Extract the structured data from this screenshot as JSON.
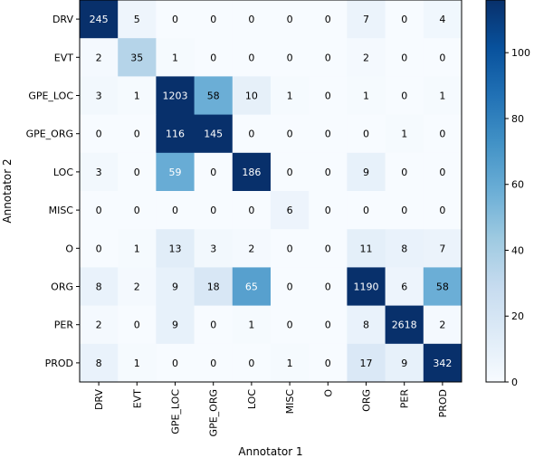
{
  "chart_data": {
    "type": "heatmap",
    "xlabel": "Annotator 1",
    "ylabel": "Annotator 2",
    "x_categories": [
      "DRV",
      "EVT",
      "GPE_LOC",
      "GPE_ORG",
      "LOC",
      "MISC",
      "O",
      "ORG",
      "PER",
      "PROD"
    ],
    "y_categories": [
      "DRV",
      "EVT",
      "GPE_LOC",
      "GPE_ORG",
      "LOC",
      "MISC",
      "O",
      "ORG",
      "PER",
      "PROD"
    ],
    "values": [
      [
        245,
        5,
        0,
        0,
        0,
        0,
        0,
        7,
        0,
        4
      ],
      [
        2,
        35,
        1,
        0,
        0,
        0,
        0,
        2,
        0,
        0
      ],
      [
        3,
        1,
        1203,
        58,
        10,
        1,
        0,
        1,
        0,
        1
      ],
      [
        0,
        0,
        116,
        145,
        0,
        0,
        0,
        0,
        1,
        0
      ],
      [
        3,
        0,
        59,
        0,
        186,
        0,
        0,
        9,
        0,
        0
      ],
      [
        0,
        0,
        0,
        0,
        0,
        6,
        0,
        0,
        0,
        0
      ],
      [
        0,
        1,
        13,
        3,
        2,
        0,
        0,
        11,
        8,
        7
      ],
      [
        8,
        2,
        9,
        18,
        65,
        0,
        0,
        1190,
        6,
        58
      ],
      [
        2,
        0,
        9,
        0,
        1,
        0,
        0,
        8,
        2618,
        2
      ],
      [
        8,
        1,
        0,
        0,
        0,
        1,
        0,
        17,
        9,
        342
      ]
    ],
    "color_range": [
      0,
      116
    ],
    "colormap": "Blues",
    "colorbar_ticks": [
      "0",
      "20",
      "40",
      "60",
      "80",
      "100"
    ],
    "colorbar_tick_values": [
      0,
      20,
      40,
      60,
      80,
      100
    ]
  }
}
